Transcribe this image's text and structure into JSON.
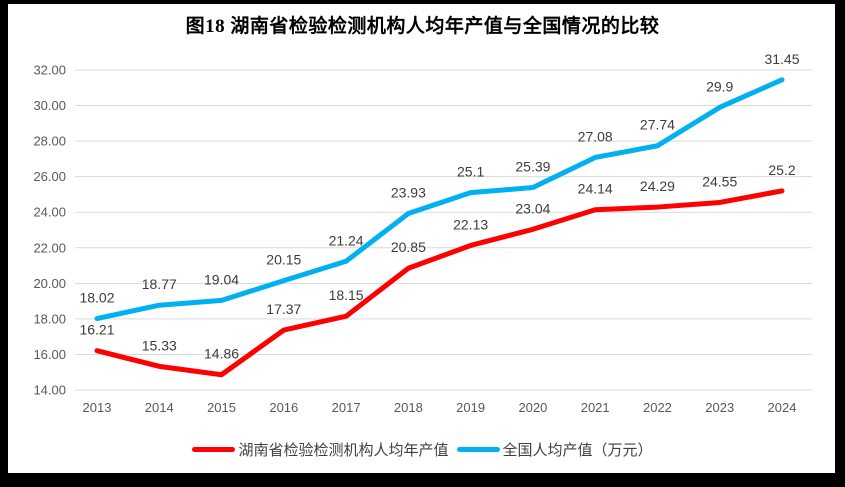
{
  "chart_data": {
    "type": "line",
    "title": "图18 湖南省检验检测机构人均年产值与全国情况的比较",
    "categories": [
      "2013",
      "2014",
      "2015",
      "2016",
      "2017",
      "2018",
      "2019",
      "2020",
      "2021",
      "2022",
      "2023",
      "2024"
    ],
    "series": [
      {
        "key": "hunan",
        "name": "湖南省检验检测机构人均年产值",
        "color": "#FF0000",
        "values": [
          16.21,
          15.33,
          14.86,
          17.37,
          18.15,
          20.85,
          22.13,
          23.04,
          24.14,
          24.29,
          24.55,
          25.2
        ],
        "labels": [
          "16.21",
          "15.33",
          "14.86",
          "17.37",
          "18.15",
          "20.85",
          "22.13",
          "23.04",
          "24.14",
          "24.29",
          "24.55",
          "25.2"
        ]
      },
      {
        "key": "national",
        "name": "全国人均产值（万元）",
        "color": "#00B0F0",
        "values": [
          18.02,
          18.77,
          19.04,
          20.15,
          21.24,
          23.93,
          25.1,
          25.39,
          27.08,
          27.74,
          29.9,
          31.45
        ],
        "labels": [
          "18.02",
          "18.77",
          "19.04",
          "20.15",
          "21.24",
          "23.93",
          "25.1",
          "25.39",
          "27.08",
          "27.74",
          "29.9",
          "31.45"
        ]
      }
    ],
    "ylim": [
      14,
      32
    ],
    "ytick_step": 2,
    "ytick_labels": [
      "14.00",
      "16.00",
      "18.00",
      "20.00",
      "22.00",
      "24.00",
      "26.00",
      "28.00",
      "30.00",
      "32.00"
    ],
    "grid": true,
    "legend_position": "bottom",
    "colors": {
      "gridline": "#D9D9D9",
      "tick_text": "#595959",
      "data_label_text": "#3D3D3D",
      "legend_text": "#404040",
      "frame": "#000000",
      "background": "#FFFFFF"
    }
  }
}
